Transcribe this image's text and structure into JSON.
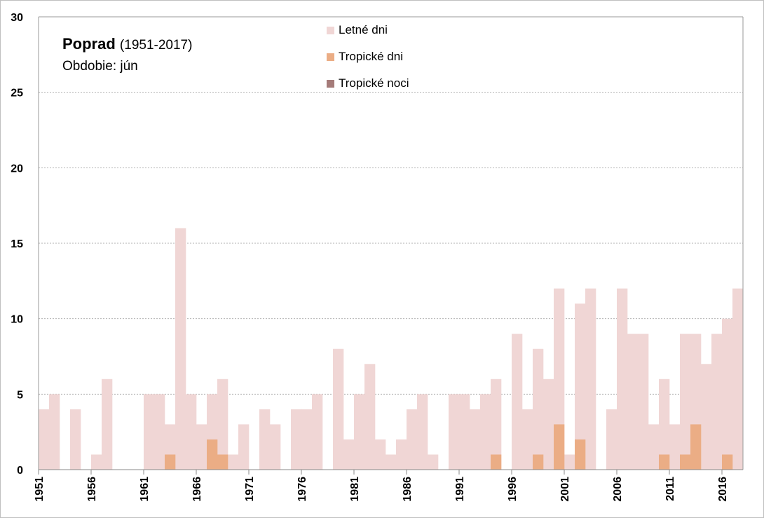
{
  "chart_data": {
    "type": "bar",
    "title": "Poprad",
    "title_range": "(1951-2017)",
    "subtitle": "Obdobie: jún",
    "ylim": [
      0,
      30
    ],
    "yticks": [
      0,
      5,
      10,
      15,
      20,
      25,
      30
    ],
    "xtick_labels": [
      "1951",
      "1956",
      "1961",
      "1966",
      "1971",
      "1976",
      "1981",
      "1986",
      "1991",
      "1996",
      "2001",
      "2006",
      "2011",
      "2016"
    ],
    "x_start": 1951,
    "grid": true,
    "legend_placement": "top-center",
    "series": [
      {
        "name": "Letné dni",
        "color": "#f0d6d5",
        "values": [
          4,
          5,
          0,
          4,
          0,
          1,
          6,
          0,
          0,
          0,
          5,
          5,
          3,
          16,
          5,
          3,
          5,
          6,
          1,
          3,
          0,
          4,
          3,
          0,
          4,
          4,
          5,
          0,
          8,
          2,
          5,
          7,
          2,
          1,
          2,
          4,
          5,
          1,
          0,
          5,
          5,
          4,
          5,
          6,
          0,
          9,
          4,
          8,
          6,
          12,
          1,
          11,
          12,
          0,
          4,
          12,
          9,
          9,
          3,
          6,
          3,
          9,
          9,
          7,
          9,
          10,
          12
        ]
      },
      {
        "name": "Tropické dni",
        "color": "#ebad85",
        "values": [
          0,
          0,
          0,
          0,
          0,
          0,
          0,
          0,
          0,
          0,
          0,
          0,
          1,
          0,
          0,
          0,
          2,
          1,
          0,
          0,
          0,
          0,
          0,
          0,
          0,
          0,
          0,
          0,
          0,
          0,
          0,
          0,
          0,
          0,
          0,
          0,
          0,
          0,
          0,
          0,
          0,
          0,
          0,
          1,
          0,
          0,
          0,
          1,
          0,
          3,
          0,
          2,
          0,
          0,
          0,
          0,
          0,
          0,
          0,
          1,
          0,
          1,
          3,
          0,
          0,
          1,
          0
        ]
      },
      {
        "name": "Tropické noci",
        "color": "#a57b79",
        "values": [
          0,
          0,
          0,
          0,
          0,
          0,
          0,
          0,
          0,
          0,
          0,
          0,
          0,
          0,
          0,
          0,
          0,
          0,
          0,
          0,
          0,
          0,
          0,
          0,
          0,
          0,
          0,
          0,
          0,
          0,
          0,
          0,
          0,
          0,
          0,
          0,
          0,
          0,
          0,
          0,
          0,
          0,
          0,
          0,
          0,
          0,
          0,
          0,
          0,
          0,
          0,
          0,
          0,
          0,
          0,
          0,
          0,
          0,
          0,
          0,
          0,
          0,
          0,
          0,
          0,
          0,
          0
        ]
      }
    ]
  }
}
